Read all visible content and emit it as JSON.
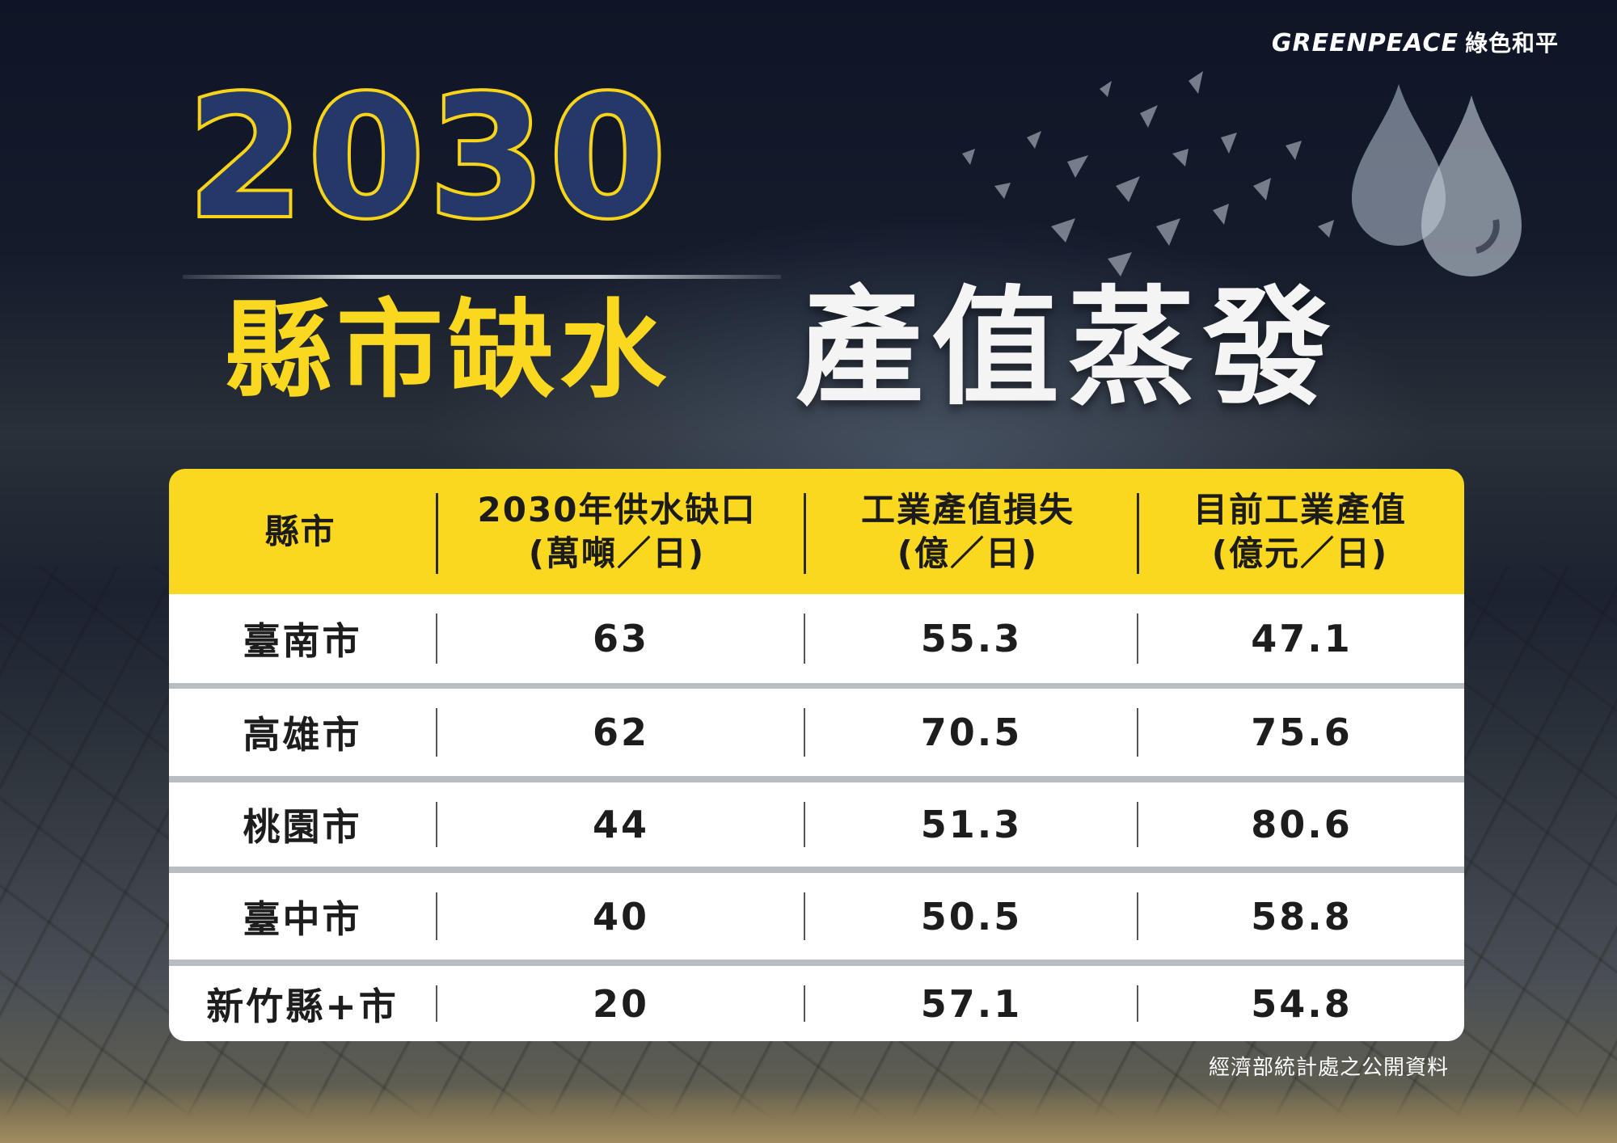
{
  "brand": {
    "logo_en": "GREENPEACE",
    "logo_zh": "綠色和平"
  },
  "headline": {
    "year": "2030",
    "part1": "縣市缺水",
    "part2": "產值蒸發"
  },
  "colors": {
    "yellow": "#fbd820",
    "navy": "#24386a",
    "white": "#ffffff"
  },
  "icons": [
    "water-drops-icon",
    "shattered-shards-graphic"
  ],
  "table": {
    "headers": [
      {
        "line1": "縣市",
        "line2": ""
      },
      {
        "line1": "2030年供水缺口",
        "line2": "(萬噸／日)"
      },
      {
        "line1": "工業產值損失",
        "line2": "(億／日)"
      },
      {
        "line1": "目前工業產值",
        "line2": "(億元／日)"
      }
    ],
    "rows": [
      {
        "city": "臺南市",
        "shortage": "63",
        "loss": "55.3",
        "output": "47.1"
      },
      {
        "city": "高雄市",
        "shortage": "62",
        "loss": "70.5",
        "output": "75.6"
      },
      {
        "city": "桃園市",
        "shortage": "44",
        "loss": "51.3",
        "output": "80.6"
      },
      {
        "city": "臺中市",
        "shortage": "40",
        "loss": "50.5",
        "output": "58.8"
      },
      {
        "city": "新竹縣+市",
        "shortage": "20",
        "loss": "57.1",
        "output": "54.8"
      }
    ]
  },
  "source": "經濟部統計處之公開資料"
}
